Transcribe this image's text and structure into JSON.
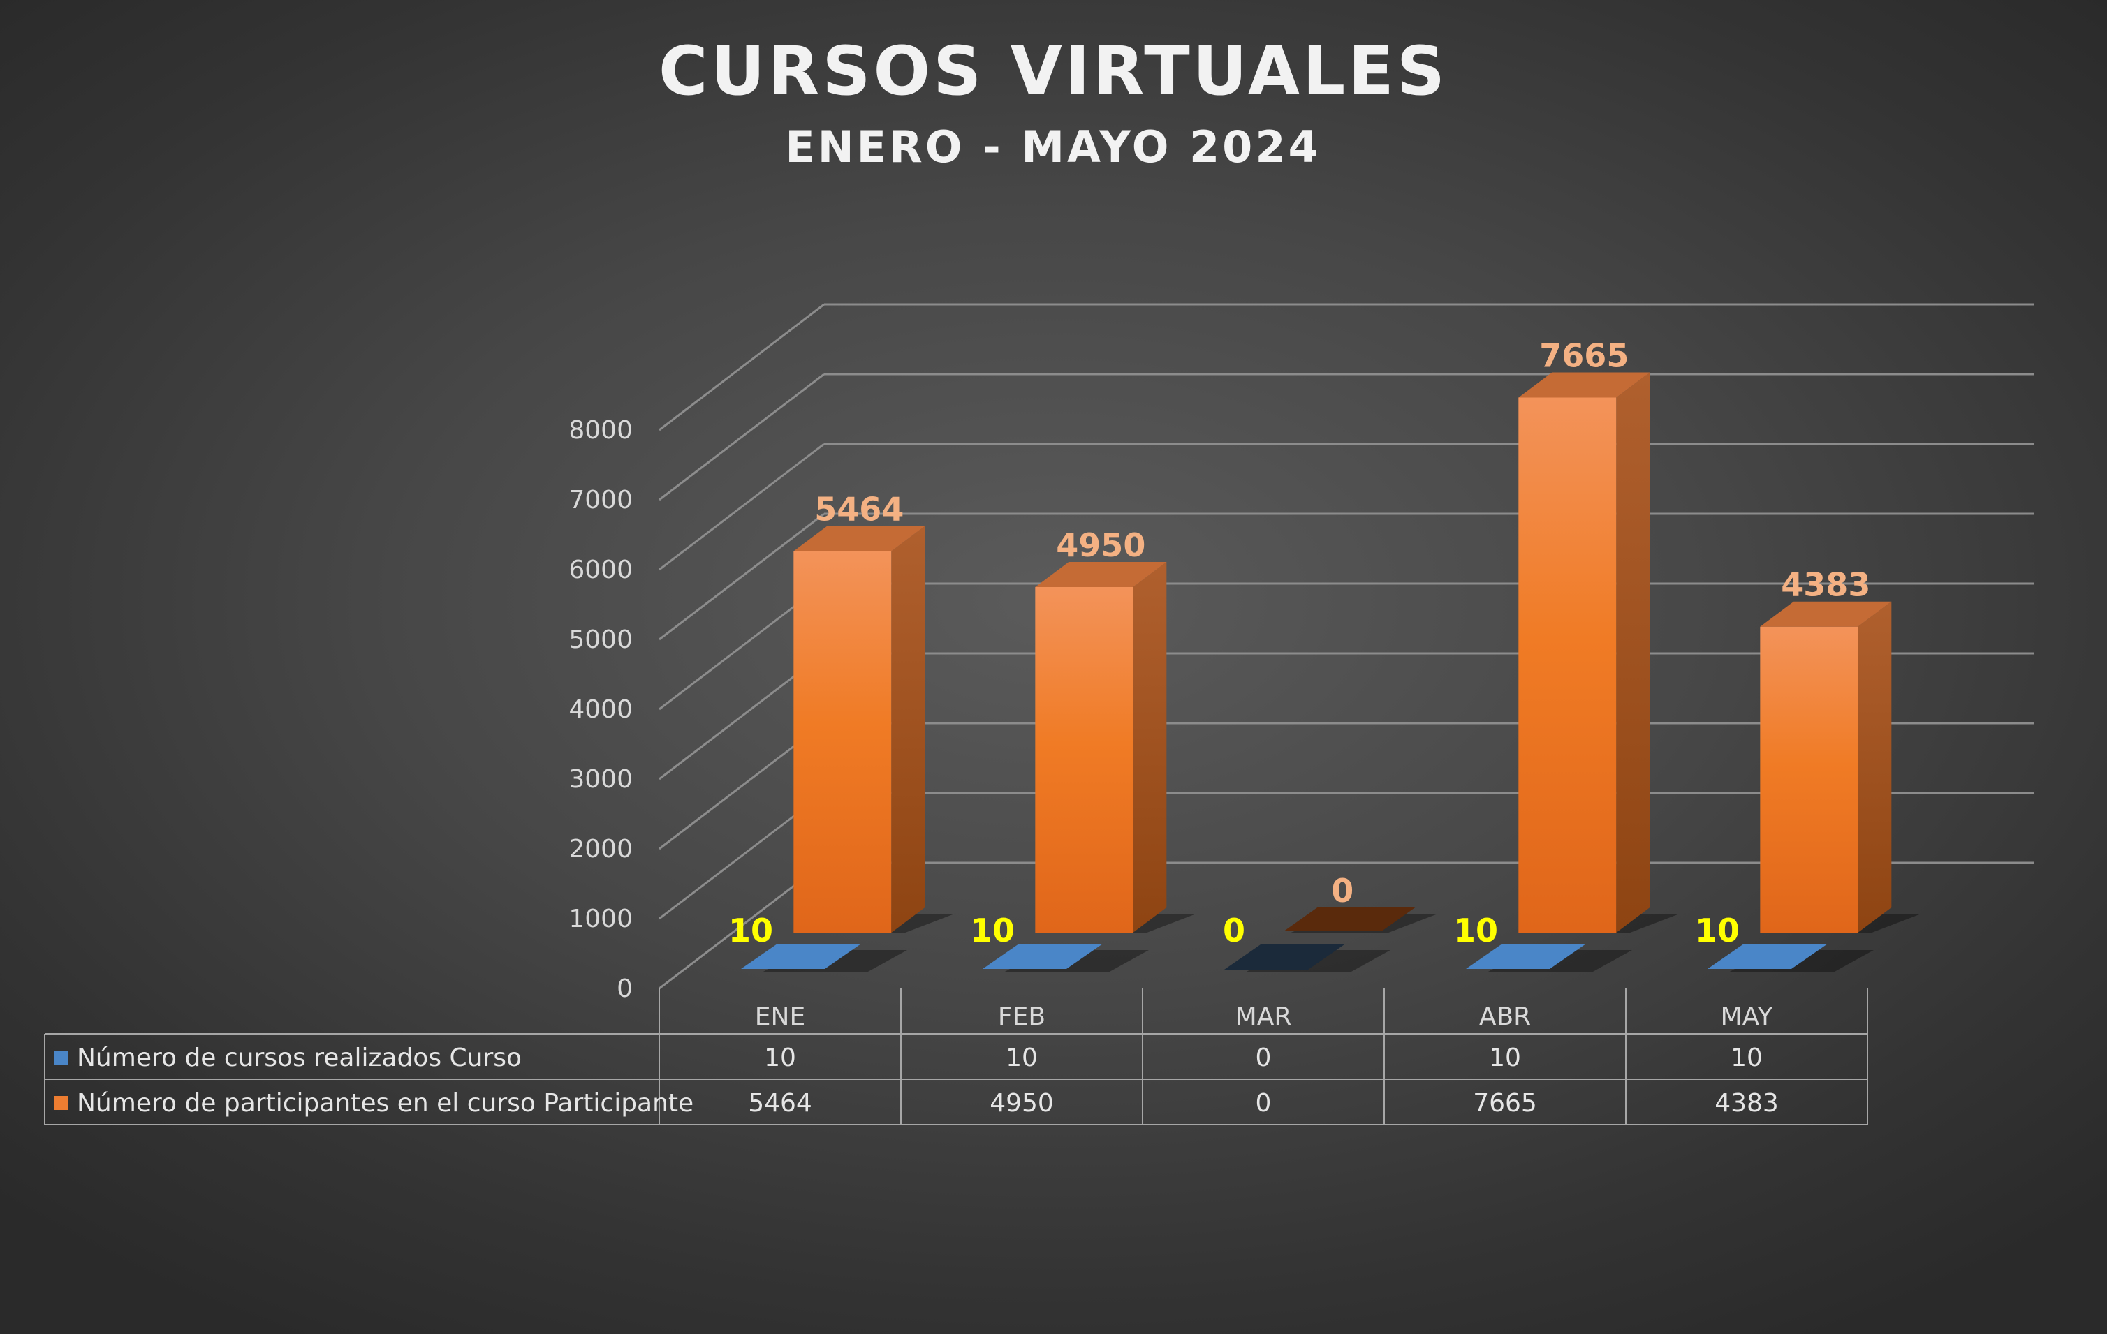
{
  "colors": {
    "participants": "#ed7d31",
    "courses": "#4a86c8",
    "label_orange": "#f4b183",
    "label_yellow": "#ffff00",
    "grid": "#8c8c8c"
  },
  "chart_data": {
    "type": "bar",
    "title": "CURSOS VIRTUALES",
    "subtitle": "ENERO - MAYO 2024",
    "categories": [
      "ENE",
      "FEB",
      "MAR",
      "ABR",
      "MAY"
    ],
    "series": [
      {
        "name": "Número de cursos realizados Curso",
        "values": [
          10,
          10,
          0,
          10,
          10
        ]
      },
      {
        "name": "Número de participantes en el curso Participante",
        "values": [
          5464,
          4950,
          0,
          7665,
          4383
        ]
      }
    ],
    "ylim": [
      0,
      8000
    ],
    "yticks": [
      "0",
      "1000",
      "2000",
      "3000",
      "4000",
      "5000",
      "6000",
      "7000",
      "8000"
    ],
    "grid": true,
    "style": "3d-column",
    "legend": "data-table-below"
  }
}
